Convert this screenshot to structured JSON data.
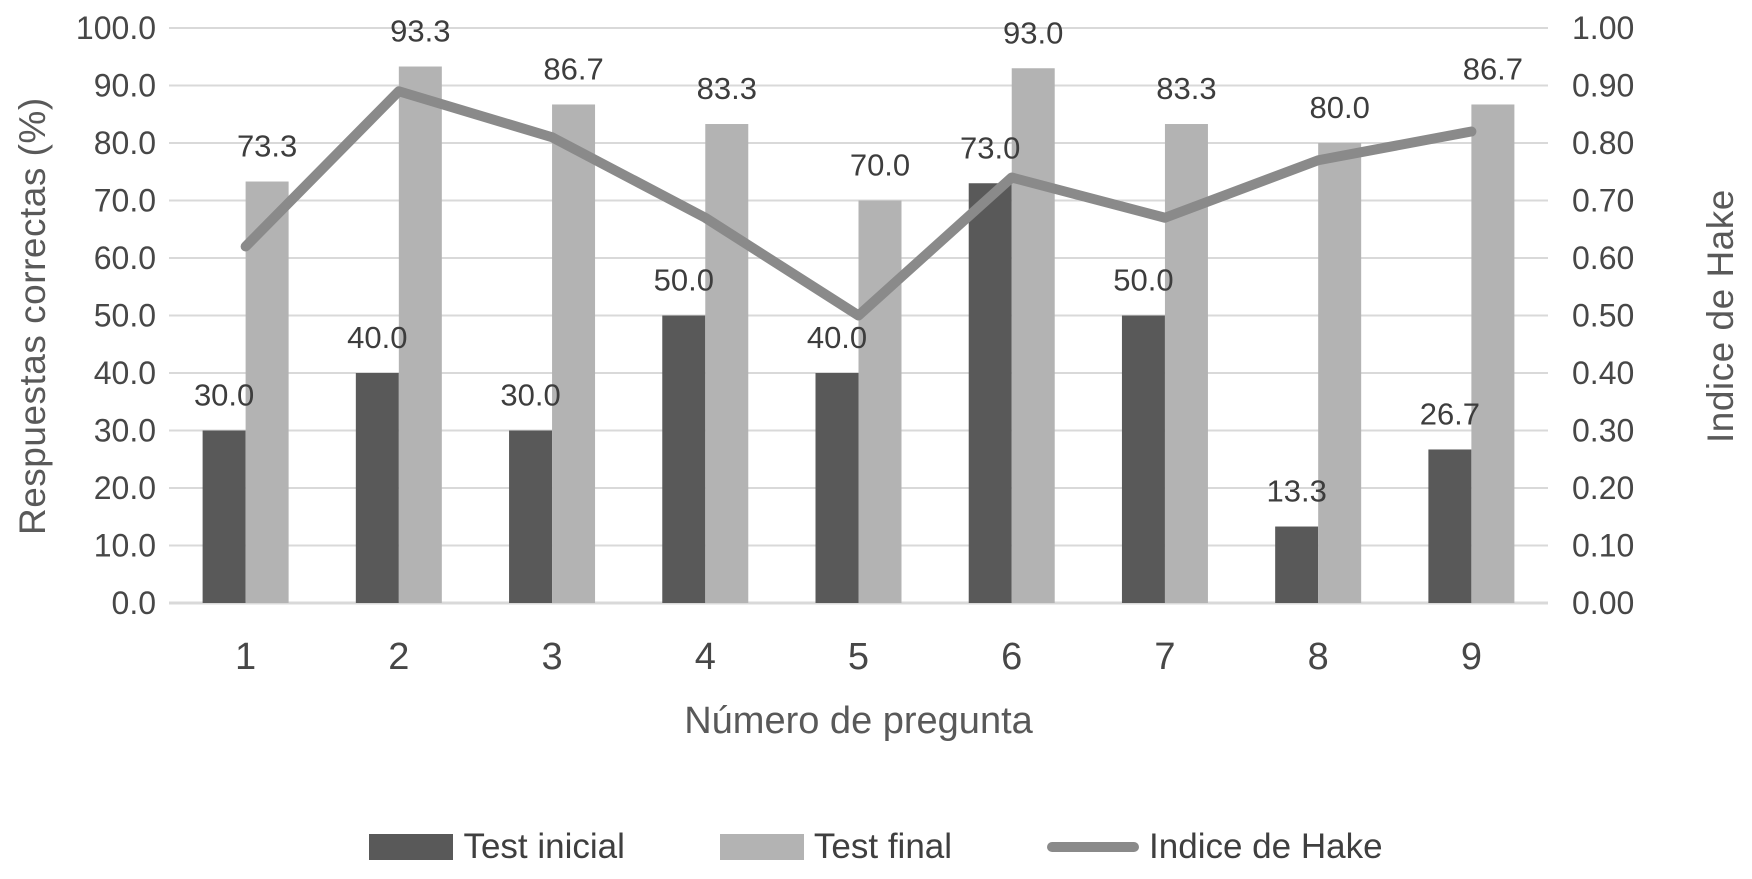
{
  "chart_data": {
    "type": "bar",
    "subtype": "combo-bar-line-dual-axis",
    "categories": [
      "1",
      "2",
      "3",
      "4",
      "5",
      "6",
      "7",
      "8",
      "9"
    ],
    "series": [
      {
        "name": "Test inicial",
        "type": "bar",
        "axis": "left",
        "color": "#595959",
        "values": [
          30.0,
          40.0,
          30.0,
          50.0,
          40.0,
          73.0,
          50.0,
          13.3,
          26.7
        ],
        "data_labels": [
          "30.0",
          "40.0",
          "30.0",
          "50.0",
          "40.0",
          "73.0",
          "50.0",
          "13.3",
          "26.7"
        ]
      },
      {
        "name": "Test final",
        "type": "bar",
        "axis": "left",
        "color": "#b3b3b3",
        "values": [
          73.3,
          93.3,
          86.7,
          83.3,
          70.0,
          93.0,
          83.3,
          80.0,
          86.7
        ],
        "data_labels": [
          "73.3",
          "93.3",
          "86.7",
          "83.3",
          "70.0",
          "93.0",
          "83.3",
          "80.0",
          "86.7"
        ]
      },
      {
        "name": "Indice de Hake",
        "type": "line",
        "axis": "right",
        "color": "#8a8a8a",
        "values": [
          0.62,
          0.89,
          0.81,
          0.67,
          0.5,
          0.74,
          0.67,
          0.77,
          0.82
        ]
      }
    ],
    "left_axis": {
      "title": "Respuestas correctas (%)",
      "min": 0,
      "max": 100,
      "step": 10,
      "tick_labels": [
        "0.0",
        "10.0",
        "20.0",
        "30.0",
        "40.0",
        "50.0",
        "60.0",
        "70.0",
        "80.0",
        "90.0",
        "100.0"
      ]
    },
    "right_axis": {
      "title": "Indice de Hake",
      "min": 0,
      "max": 1,
      "step": 0.1,
      "tick_labels": [
        "0.00",
        "0.10",
        "0.20",
        "0.30",
        "0.40",
        "0.50",
        "0.60",
        "0.70",
        "0.80",
        "0.90",
        "1.00"
      ]
    },
    "xlabel": "Número de pregunta",
    "grid": true,
    "legend": {
      "position": "bottom"
    },
    "colors": {
      "bar_dark": "#595959",
      "bar_light": "#b3b3b3",
      "line": "#8a8a8a",
      "gridline": "#d9d9d9",
      "tick_text": "#474747",
      "data_label_text": "#3d3d3d",
      "axis_title_text": "#595959"
    }
  }
}
